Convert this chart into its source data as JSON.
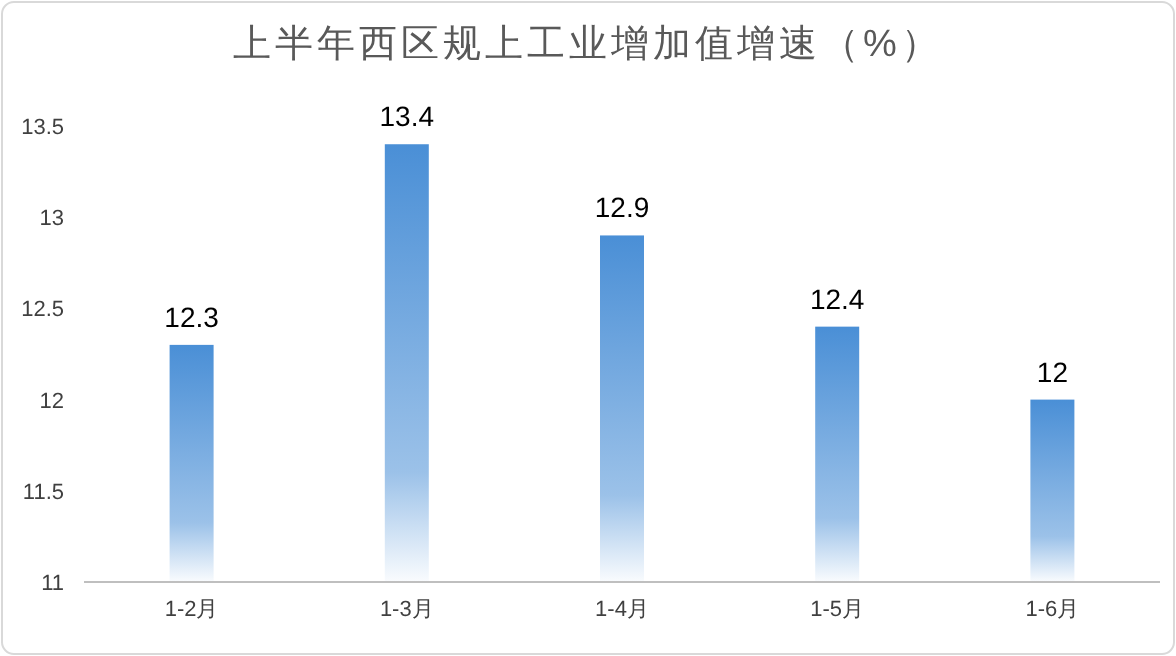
{
  "chart_data": {
    "type": "bar",
    "title": "上半年西区规上工业增加值增速（%）",
    "categories": [
      "1-2月",
      "1-3月",
      "1-4月",
      "1-5月",
      "1-6月"
    ],
    "values": [
      12.3,
      13.4,
      12.9,
      12.4,
      12
    ],
    "color": "#4a8fd6",
    "ylim": [
      11,
      13.5
    ],
    "yticks": [
      11,
      11.5,
      12,
      12.5,
      13,
      13.5
    ],
    "grid": false,
    "data_labels": true
  }
}
